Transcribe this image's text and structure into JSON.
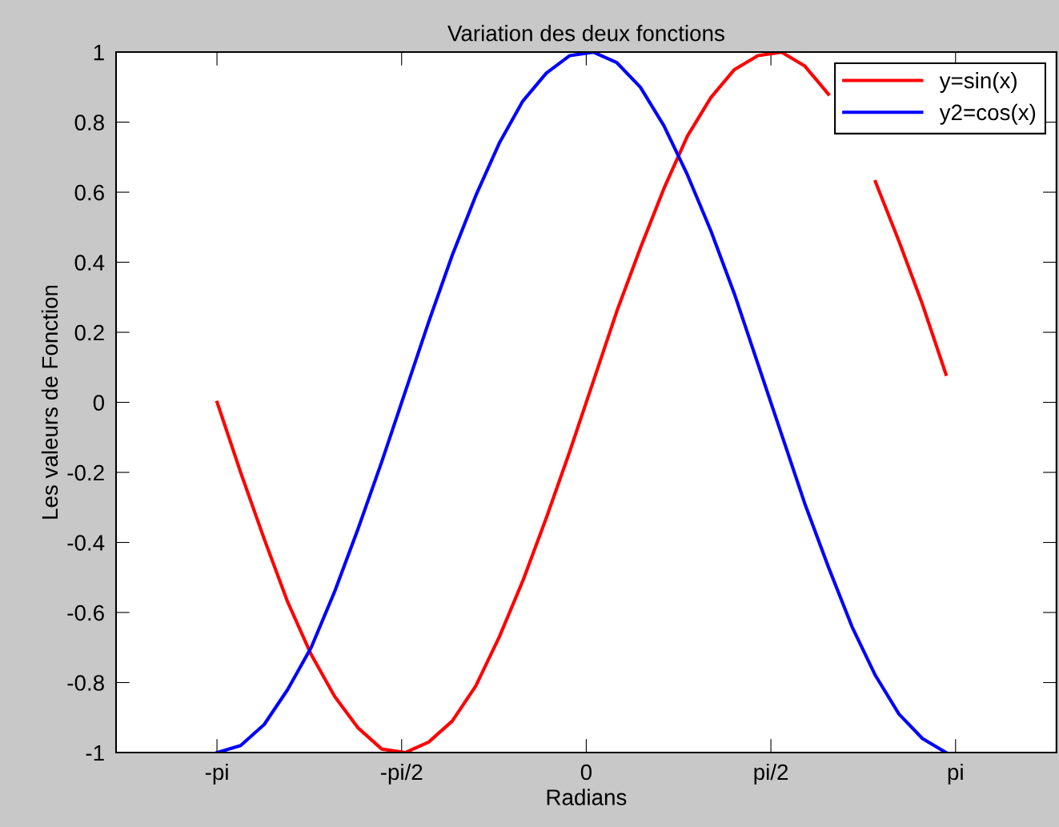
{
  "chart_data": {
    "type": "line",
    "title": "Variation des deux fonctions",
    "xlabel": "Radians",
    "ylabel": "Les valeurs de Fonction",
    "x": [
      -3.14,
      -2.94,
      -2.74,
      -2.54,
      -2.34,
      -2.14,
      -1.94,
      -1.74,
      -1.54,
      -1.34,
      -1.14,
      -0.94,
      -0.74,
      -0.54,
      -0.34,
      -0.14,
      0.06,
      0.26,
      0.46,
      0.66,
      0.86,
      1.06,
      1.26,
      1.46,
      1.66,
      1.86,
      2.06,
      2.26,
      2.46,
      2.66,
      2.86,
      3.06
    ],
    "series": [
      {
        "name": "y=sin(x)",
        "color": "#ff0000",
        "values": [
          0.0,
          -0.2,
          -0.39,
          -0.57,
          -0.72,
          -0.84,
          -0.93,
          -0.99,
          -1.0,
          -0.97,
          -0.91,
          -0.81,
          -0.67,
          -0.51,
          -0.33,
          -0.14,
          0.06,
          0.26,
          0.44,
          0.61,
          0.76,
          0.87,
          0.95,
          0.99,
          1.0,
          0.96,
          0.88,
          null,
          0.63,
          0.46,
          0.28,
          0.08
        ]
      },
      {
        "name": "y2=cos(x)",
        "color": "#0000ff",
        "values": [
          -1.0,
          -0.98,
          -0.92,
          -0.82,
          -0.7,
          -0.54,
          -0.36,
          -0.17,
          0.03,
          0.23,
          0.42,
          0.59,
          0.74,
          0.86,
          0.94,
          0.99,
          1.0,
          0.97,
          0.9,
          0.79,
          0.65,
          0.49,
          0.31,
          0.11,
          -0.09,
          -0.29,
          -0.47,
          -0.64,
          -0.78,
          -0.89,
          -0.96,
          -1.0
        ]
      }
    ],
    "xlim": [
      -4,
      4
    ],
    "xticks": [
      {
        "value": -3.1416,
        "label": "-pi"
      },
      {
        "value": -1.5708,
        "label": "-pi/2"
      },
      0,
      {
        "value": 1.5708,
        "label": "pi/2"
      },
      {
        "value": 3.1416,
        "label": "pi"
      }
    ],
    "ylim": [
      -1,
      1
    ],
    "yticks": [
      -1,
      -0.8,
      -0.6,
      -0.4,
      -0.2,
      0,
      0.2,
      0.4,
      0.6,
      0.8,
      1
    ],
    "grid": false,
    "legend": "top right",
    "line_style": "solid",
    "marker": "none"
  }
}
